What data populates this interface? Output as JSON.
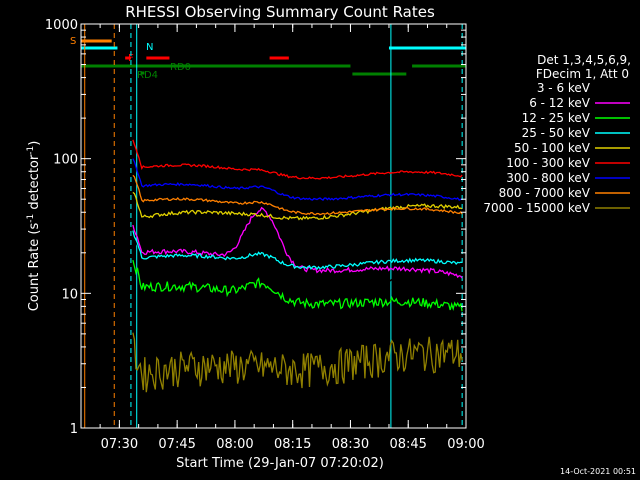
{
  "chart_data": {
    "type": "line",
    "title": "RHESSI Observing Summary Count Rates",
    "xlabel": "Start Time (29-Jan-07 07:20:02)",
    "ylabel_main": "Count Rate (s",
    "ylabel_sup1": "-1",
    "ylabel_mid": " detector",
    "ylabel_sup2": "-1",
    "ylabel_end": ")",
    "y_scale": "log",
    "ylim": [
      1,
      1000
    ],
    "xlim": [
      "07:20:02",
      "09:00:00"
    ],
    "x_ticks": [
      "07:30",
      "07:45",
      "08:00",
      "08:15",
      "08:30",
      "08:45",
      "09:00"
    ],
    "y_ticks": [
      "1",
      "10",
      "100",
      "1000"
    ],
    "detector_info": {
      "line1": "Det 1,3,4,5,6,9,",
      "line2": "FDecim 1, Att 0"
    },
    "series": [
      {
        "name": "3 - 6 keV",
        "color": "#000000"
      },
      {
        "name": "6 - 12 keV",
        "color": "#ff00ff"
      },
      {
        "name": "12 - 25 keV",
        "color": "#00ff00"
      },
      {
        "name": "25 - 50 keV",
        "color": "#00ffff"
      },
      {
        "name": "50 - 100 keV",
        "color": "#e0d000"
      },
      {
        "name": "100 - 300 keV",
        "color": "#ff0000"
      },
      {
        "name": "300 - 800 keV",
        "color": "#0000ff"
      },
      {
        "name": "800 - 7000 keV",
        "color": "#ff8000"
      },
      {
        "name": "7000 - 15000 keV",
        "color": "#908000"
      }
    ],
    "flags": [
      {
        "label": "S",
        "color": "#ff8000"
      },
      {
        "label": "N",
        "color": "#00ffff"
      },
      {
        "label": "F",
        "color": "#ff0000"
      },
      {
        "label": "RD0",
        "color": "#008000"
      },
      {
        "label": "RD4",
        "color": "#008000"
      }
    ],
    "timestamp": "14-Oct-2021 00:51"
  }
}
